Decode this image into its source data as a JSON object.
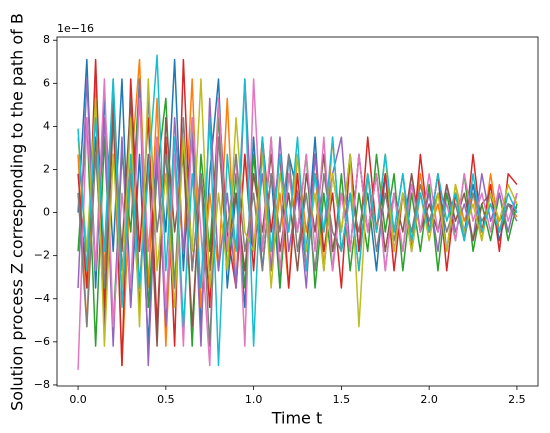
{
  "chart_data": {
    "type": "line",
    "xlabel": "Time t",
    "ylabel": "Solution process Z corresponding to the path of B",
    "y_offset_label": "1e−16",
    "xlim": [
      -0.12,
      2.62
    ],
    "ylim": [
      -8.05,
      8.15
    ],
    "xticks": [
      {
        "value": 0,
        "label": "0.0"
      },
      0.5,
      {
        "value": 1,
        "label": "1.0"
      },
      1.5,
      {
        "value": 2,
        "label": "2.0"
      },
      2.5
    ],
    "yticks": [
      {
        "value": -8,
        "label": "−8"
      },
      {
        "value": -6,
        "label": "−6"
      },
      {
        "value": -4,
        "label": "−4"
      },
      {
        "value": -2,
        "label": "−2"
      },
      0,
      2,
      4,
      6,
      8
    ],
    "grid": false,
    "x": [
      0,
      0.05,
      0.1,
      0.15,
      0.2,
      0.25,
      0.3,
      0.35,
      0.4,
      0.45,
      0.5,
      0.55,
      0.6,
      0.65,
      0.7,
      0.75,
      0.8,
      0.85,
      0.9,
      0.95,
      1,
      1.05,
      1.1,
      1.15,
      1.2,
      1.25,
      1.3,
      1.35,
      1.4,
      1.45,
      1.5,
      1.55,
      1.6,
      1.65,
      1.7,
      1.75,
      1.8,
      1.85,
      1.9,
      1.95,
      2,
      2.05,
      2.1,
      2.15,
      2.2,
      2.25,
      2.3,
      2.35,
      2.4,
      2.45,
      2.5
    ],
    "series": [
      {
        "color": "#1f77b4",
        "values": [
          0.0,
          7.1,
          -3.5,
          5.3,
          -1.8,
          6.2,
          -4.4,
          2.7,
          -6.2,
          3.5,
          -0.9,
          7.1,
          -2.7,
          4.4,
          -5.3,
          1.8,
          6.2,
          -3.5,
          0.9,
          -4.4,
          3.5,
          -2.7,
          1.8,
          -3.5,
          2.7,
          0.9,
          -1.8,
          3.5,
          -2.7,
          1.8,
          -0.9,
          2.7,
          -1.8,
          0.9,
          -2.7,
          1.8,
          -0.9,
          1.8,
          -1.8,
          0.9,
          -0.9,
          1.8,
          -1.8,
          0.9,
          -0.9,
          1.3,
          -0.9,
          0.9,
          -1.3,
          0.4,
          0.2
        ]
      },
      {
        "color": "#ff7f0e",
        "values": [
          2.7,
          -5.3,
          6.2,
          -2.7,
          4.4,
          -7.1,
          1.8,
          7.1,
          -3.5,
          5.3,
          -6.2,
          2.7,
          -1.8,
          6.2,
          -4.4,
          0.9,
          -2.7,
          5.3,
          -3.5,
          2.7,
          -1.8,
          3.5,
          -2.7,
          0.9,
          -3.5,
          2.7,
          -0.9,
          1.8,
          -2.7,
          3.5,
          -1.8,
          0.9,
          -2.7,
          1.8,
          -0.9,
          2.7,
          -1.8,
          0.9,
          -1.3,
          1.8,
          -0.9,
          0.4,
          -1.8,
          1.3,
          -0.4,
          0.9,
          -1.3,
          1.8,
          -0.9,
          0.4,
          -0.2
        ]
      },
      {
        "color": "#2ca02c",
        "values": [
          -1.8,
          4.4,
          -6.2,
          3.5,
          -5.3,
          2.7,
          -0.9,
          6.2,
          -4.4,
          1.8,
          5.3,
          -3.5,
          3.5,
          -6.2,
          2.7,
          -1.8,
          4.4,
          -2.7,
          1.8,
          -3.5,
          2.7,
          -1.8,
          3.5,
          -3.5,
          1.8,
          -0.9,
          2.7,
          -3.5,
          0.9,
          -2.7,
          1.8,
          -2.7,
          0.9,
          -1.8,
          2.7,
          -0.9,
          1.8,
          -2.7,
          0.9,
          -1.8,
          1.3,
          -2.7,
          0.9,
          -1.3,
          1.8,
          -1.8,
          0.4,
          -1.3,
          0.9,
          -1.3,
          0.4
        ]
      },
      {
        "color": "#d62728",
        "values": [
          1.8,
          -3.5,
          7.1,
          -4.4,
          5.3,
          -7.1,
          6.2,
          -1.8,
          4.4,
          -5.3,
          3.5,
          -6.2,
          7.1,
          -2.7,
          1.8,
          -4.4,
          5.3,
          -0.9,
          -3.5,
          2.7,
          -2.7,
          3.5,
          -0.9,
          2.7,
          -3.5,
          1.8,
          -2.7,
          2.7,
          -1.8,
          0.9,
          -3.5,
          2.7,
          -1.8,
          3.5,
          -0.9,
          1.8,
          -2.7,
          0.9,
          -1.8,
          2.7,
          -0.9,
          1.8,
          -2.7,
          0.9,
          -1.3,
          2.7,
          -0.9,
          1.3,
          -1.8,
          1.8,
          1.3
        ]
      },
      {
        "color": "#9467bd",
        "values": [
          -3.5,
          6.2,
          -2.7,
          4.4,
          -6.2,
          3.5,
          -4.4,
          6.2,
          -7.1,
          2.7,
          -5.3,
          4.4,
          -1.8,
          3.5,
          -6.2,
          5.3,
          -2.7,
          0.9,
          -3.5,
          6.2,
          -1.8,
          1.8,
          -2.7,
          3.5,
          -1.8,
          0.9,
          -3.5,
          2.7,
          -0.9,
          1.8,
          3.5,
          -1.8,
          2.7,
          -0.9,
          1.8,
          -2.7,
          0.9,
          -1.8,
          1.8,
          -0.9,
          0.9,
          -1.8,
          1.3,
          -0.9,
          0.4,
          -1.3,
          1.8,
          -0.4,
          0.9,
          -0.9,
          0.9
        ]
      },
      {
        "color": "#8c564b",
        "values": [
          0.9,
          -2.7,
          3.5,
          -5.3,
          4.4,
          -1.8,
          5.3,
          -3.5,
          2.7,
          -6.2,
          4.4,
          -0.9,
          2.7,
          -5.3,
          1.8,
          -2.7,
          3.5,
          -1.8,
          0.9,
          -2.7,
          1.8,
          -0.9,
          2.7,
          -1.8,
          0.9,
          -2.7,
          1.8,
          -0.9,
          2.7,
          -1.8,
          0.9,
          -1.8,
          2.7,
          -0.9,
          1.8,
          -1.8,
          0.9,
          -0.9,
          1.8,
          -0.9,
          0.4,
          -0.9,
          1.3,
          -0.4,
          0.9,
          -1.3,
          0.4,
          0.9,
          -0.4,
          0.4,
          0.0
        ]
      },
      {
        "color": "#e377c2",
        "values": [
          -7.3,
          4.4,
          -2.7,
          6.2,
          -5.3,
          0.9,
          -3.5,
          5.3,
          -1.8,
          3.5,
          -4.4,
          2.7,
          -6.2,
          4.4,
          -0.9,
          -7.1,
          5.3,
          -1.8,
          2.7,
          -6.2,
          6.2,
          -1.8,
          3.5,
          -2.7,
          1.8,
          -0.9,
          2.7,
          -1.8,
          3.5,
          -2.7,
          0.9,
          -1.8,
          2.7,
          -0.9,
          1.8,
          -2.7,
          0.9,
          -1.8,
          1.3,
          -0.9,
          1.8,
          -0.9,
          0.4,
          -1.3,
          1.8,
          -0.4,
          0.9,
          -0.9,
          1.3,
          -0.4,
          0.9
        ]
      },
      {
        "color": "#7f7f7f",
        "values": [
          0.9,
          -5.3,
          2.7,
          -3.5,
          6.2,
          -2.7,
          1.8,
          -4.4,
          5.3,
          -0.9,
          2.7,
          -3.5,
          4.4,
          -2.7,
          1.8,
          -6.2,
          3.5,
          -0.9,
          2.7,
          -1.8,
          0.9,
          -2.7,
          1.8,
          -0.9,
          2.7,
          -1.8,
          0.9,
          -2.7,
          1.8,
          -0.9,
          -1.8,
          0.9,
          -0.9,
          1.8,
          -1.8,
          0.9,
          -1.3,
          0.9,
          -0.9,
          1.3,
          -0.4,
          0.9,
          -0.9,
          0.4,
          -1.3,
          0.9,
          -0.4,
          0.4,
          -0.9,
          0.4,
          -0.4
        ]
      },
      {
        "color": "#bcbd22",
        "values": [
          3.5,
          -1.8,
          5.3,
          -6.2,
          2.7,
          -3.5,
          4.4,
          -5.3,
          6.2,
          -2.7,
          1.8,
          -4.4,
          3.5,
          -1.8,
          6.2,
          -3.5,
          0.9,
          -2.7,
          4.4,
          -0.9,
          -1.8,
          2.7,
          -3.5,
          1.8,
          -0.9,
          2.7,
          -1.8,
          0.9,
          -2.7,
          1.8,
          -0.9,
          2.7,
          -5.3,
          1.8,
          -0.9,
          2.7,
          -1.8,
          0.9,
          -1.8,
          0.9,
          -1.3,
          0.9,
          -1.8,
          1.3,
          -0.9,
          0.4,
          -1.3,
          0.9,
          -0.4,
          1.3,
          0.4
        ]
      },
      {
        "color": "#17becf",
        "values": [
          3.9,
          -2.7,
          4.4,
          -1.8,
          6.2,
          -4.4,
          2.7,
          -3.5,
          1.8,
          7.3,
          -2.7,
          3.5,
          -5.3,
          1.8,
          -3.5,
          4.4,
          -7.1,
          2.7,
          -1.8,
          6.2,
          -6.2,
          3.5,
          -1.8,
          2.7,
          -0.9,
          3.5,
          -2.7,
          1.8,
          -0.9,
          3.5,
          -1.8,
          0.9,
          -2.7,
          1.8,
          -0.9,
          2.7,
          -0.9,
          1.8,
          -1.3,
          0.9,
          -0.9,
          1.8,
          -0.4,
          0.9,
          -1.3,
          1.8,
          -0.9,
          0.4,
          -0.9,
          0.9,
          0.0
        ]
      }
    ]
  }
}
